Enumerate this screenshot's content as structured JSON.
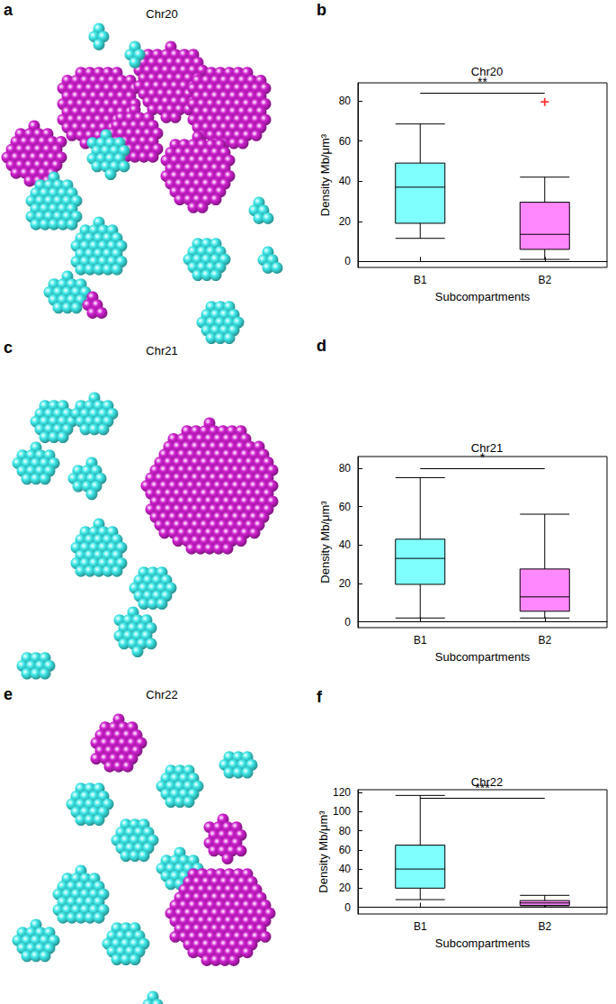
{
  "chart_data": [
    {
      "type": "3d_structure",
      "panel": "a",
      "title": "Chr20",
      "colors": [
        "#3ee8e8",
        "#d020d0"
      ]
    },
    {
      "type": "boxplot",
      "panel": "b",
      "title": "Chr20",
      "x_label": "Subcompartments",
      "y_label": "Density Mb/μm³",
      "categories": [
        "B1",
        "B2"
      ],
      "boxes": [
        [
          11.5,
          19,
          37,
          49,
          68.5
        ],
        [
          1,
          6,
          13.5,
          29.5,
          42
        ]
      ],
      "outliers": [
        [],
        [
          79.5
        ]
      ],
      "colors": [
        "#80ffff",
        "#ff88ff"
      ],
      "ylim": [
        -3,
        89
      ],
      "yticks": [
        0,
        20,
        40,
        60,
        80
      ],
      "significance": {
        "between": [
          "B1",
          "B2"
        ],
        "y": 84,
        "label": "**"
      }
    },
    {
      "type": "3d_structure",
      "panel": "c",
      "title": "Chr21",
      "colors": [
        "#3ee8e8",
        "#d020d0"
      ]
    },
    {
      "type": "boxplot",
      "panel": "d",
      "title": "Chr21",
      "x_label": "Subcompartments",
      "y_label": "Density Mb/μm³",
      "categories": [
        "B1",
        "B2"
      ],
      "boxes": [
        [
          2,
          19.5,
          33,
          43,
          75
        ],
        [
          2,
          5.5,
          13,
          27.5,
          56
        ]
      ],
      "outliers": [
        [],
        []
      ],
      "colors": [
        "#80ffff",
        "#ff88ff"
      ],
      "ylim": [
        -3,
        86
      ],
      "yticks": [
        0,
        20,
        40,
        60,
        80
      ],
      "significance": {
        "between": [
          "B1",
          "B2"
        ],
        "y": 80,
        "label": "*"
      }
    },
    {
      "type": "3d_structure",
      "panel": "e",
      "title": "Chr22",
      "colors": [
        "#3ee8e8",
        "#d020d0"
      ]
    },
    {
      "type": "boxplot",
      "panel": "f",
      "title": "Chr22",
      "x_label": "Subcompartments",
      "y_label": "Density Mb/μm³",
      "categories": [
        "B1",
        "B2"
      ],
      "boxes": [
        [
          8,
          20,
          40,
          65,
          117
        ],
        [
          0.5,
          2,
          4.5,
          7,
          12.5
        ]
      ],
      "outliers": [
        [],
        []
      ],
      "colors": [
        "#80ffff",
        "#ff88ff"
      ],
      "ylim": [
        -7,
        123
      ],
      "yticks": [
        0,
        20,
        40,
        60,
        80,
        100,
        120
      ],
      "significance": {
        "between": [
          "B1",
          "B2"
        ],
        "y": 114,
        "label": "***"
      }
    }
  ]
}
